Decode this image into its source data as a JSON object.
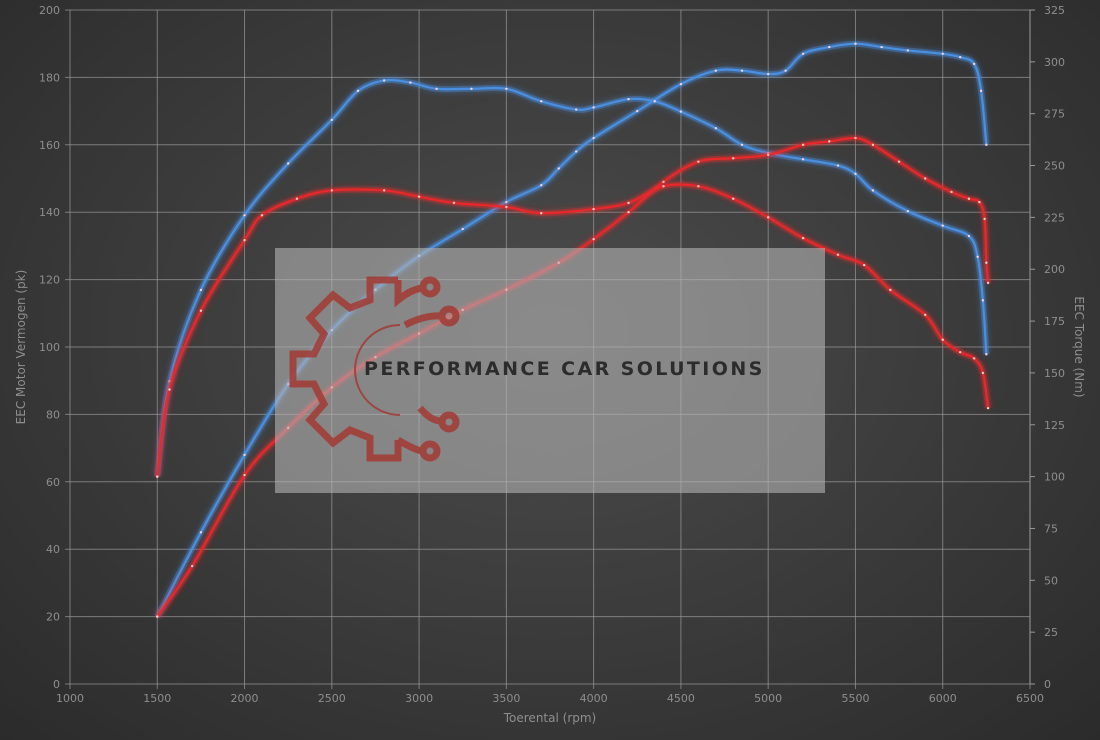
{
  "chart_data": {
    "type": "line",
    "xlabel": "Toerental (rpm)",
    "ylabel": "EEC Motor Vermogen (pk)",
    "y2label": "EEC Torque (Nm)",
    "xlim": [
      1000,
      6500
    ],
    "ylim": [
      0,
      200
    ],
    "y2lim": [
      0,
      325
    ],
    "xticks": [
      1000,
      1500,
      2000,
      2500,
      3000,
      3500,
      4000,
      4500,
      5000,
      5500,
      6000,
      6500
    ],
    "yticks": [
      0,
      20,
      40,
      60,
      80,
      100,
      120,
      140,
      160,
      180,
      200
    ],
    "y2ticks": [
      0,
      25,
      50,
      75,
      100,
      125,
      150,
      175,
      200,
      225,
      250,
      275,
      300,
      325
    ],
    "grid": true,
    "legend": "none",
    "colors": {
      "blue": "#4a90e2",
      "red": "#e8282b"
    },
    "series": [
      {
        "color": "#4a90e2",
        "axis": "left",
        "x": [
          1500,
          1750,
          2000,
          2250,
          2500,
          2750,
          3000,
          3250,
          3500,
          3700,
          3800,
          3900,
          4000,
          4250,
          4500,
          4700,
          4850,
          5000,
          5100,
          5200,
          5350,
          5500,
          5650,
          5800,
          6000,
          6100,
          6180,
          6220,
          6250
        ],
        "values": [
          20,
          45,
          68,
          89,
          105,
          117,
          127,
          135,
          143,
          148,
          153,
          158,
          162,
          170,
          178,
          182,
          182,
          181,
          182,
          187,
          189,
          190,
          189,
          188,
          187,
          186,
          184,
          176,
          160
        ]
      },
      {
        "color": "#4a90e2",
        "axis": "right",
        "x": [
          1500,
          1570,
          1750,
          2000,
          2250,
          2500,
          2650,
          2800,
          2950,
          3100,
          3300,
          3500,
          3700,
          3900,
          4000,
          4200,
          4350,
          4500,
          4700,
          4850,
          5000,
          5200,
          5400,
          5500,
          5600,
          5800,
          6000,
          6150,
          6200,
          6230,
          6250
        ],
        "values": [
          100,
          146,
          190,
          226,
          251,
          272,
          286,
          291,
          290,
          287,
          287,
          287,
          281,
          277,
          278,
          282,
          281,
          276,
          268,
          260,
          256,
          253,
          250,
          246,
          238,
          228,
          221,
          216,
          206,
          185,
          159
        ]
      },
      {
        "color": "#e8282b",
        "axis": "left",
        "x": [
          1500,
          1700,
          2000,
          2250,
          2500,
          2750,
          3000,
          3250,
          3500,
          3800,
          4000,
          4200,
          4400,
          4600,
          4800,
          5000,
          5200,
          5350,
          5500,
          5600,
          5750,
          5900,
          6050,
          6150,
          6210,
          6240,
          6250,
          6260
        ],
        "values": [
          20,
          35,
          62,
          76,
          88,
          97,
          104,
          111,
          117,
          125,
          132,
          140,
          149,
          155,
          156,
          157,
          160,
          161,
          162,
          160,
          155,
          150,
          146,
          144,
          143,
          138,
          125,
          119
        ]
      },
      {
        "color": "#e8282b",
        "axis": "right",
        "x": [
          1500,
          1570,
          1750,
          2000,
          2100,
          2300,
          2500,
          2800,
          3000,
          3200,
          3500,
          3700,
          4000,
          4200,
          4400,
          4600,
          4800,
          5000,
          5200,
          5400,
          5550,
          5700,
          5900,
          6000,
          6100,
          6180,
          6230,
          6260
        ],
        "values": [
          100,
          142,
          180,
          214,
          226,
          234,
          238,
          238,
          235,
          232,
          230,
          227,
          229,
          232,
          240,
          240,
          234,
          225,
          215,
          207,
          202,
          190,
          178,
          166,
          160,
          157,
          150,
          133
        ]
      }
    ]
  },
  "watermark": {
    "text": "PERFORMANCE CAR SOLUTIONS",
    "logo_color": "#a33a34"
  }
}
